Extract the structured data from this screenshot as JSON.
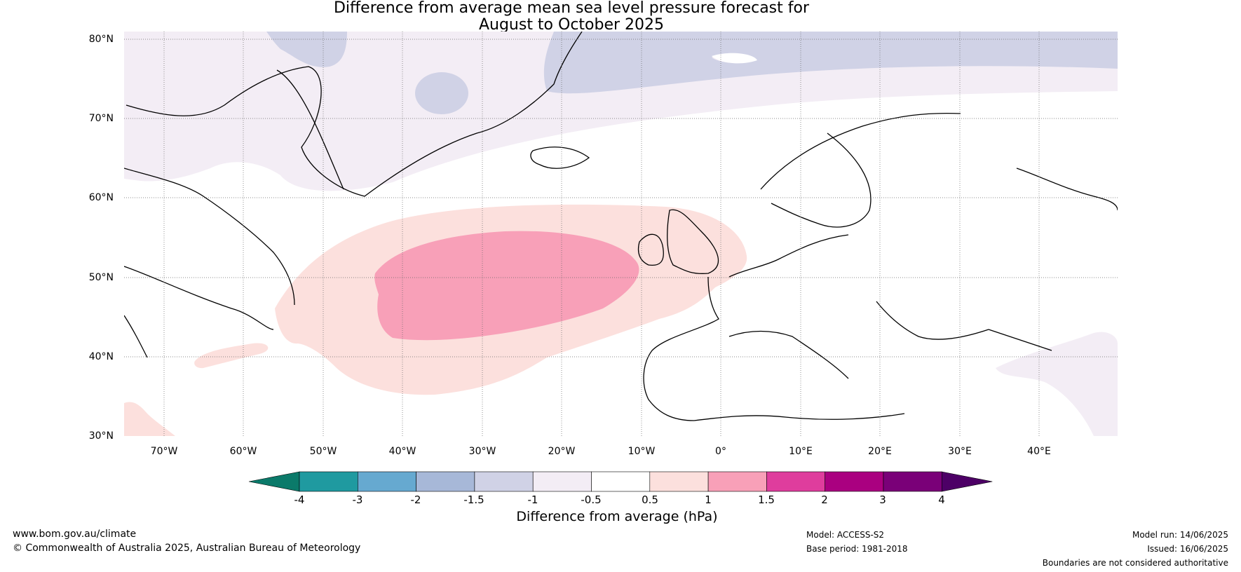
{
  "title": {
    "line1": "Difference from average mean sea level pressure forecast for",
    "line2": "August to October 2025"
  },
  "map": {
    "lat_labels": [
      "80°N",
      "70°N",
      "60°N",
      "50°N",
      "40°N",
      "30°N"
    ],
    "lon_labels": [
      "70°W",
      "60°W",
      "50°W",
      "40°W",
      "30°W",
      "20°W",
      "10°W",
      "0°",
      "10°E",
      "20°E",
      "30°E",
      "40°E"
    ]
  },
  "colorbar": {
    "title": "Difference from average (hPa)",
    "ticks": [
      "-4",
      "-3",
      "-2",
      "-1.5",
      "-1",
      "-0.5",
      "0.5",
      "1",
      "1.5",
      "2",
      "3",
      "4"
    ],
    "colors": {
      "below_-4": "#0b7a6a",
      "-4_-3": "#1f9aa0",
      "-3_-2": "#66a9d0",
      "-2_-1.5": "#a7b8d8",
      "-1.5_-1": "#d0d2e6",
      "-1_-0.5": "#f3edf5",
      "-0.5_0.5": "#ffffff",
      "0.5_1": "#fce0dd",
      "1_1.5": "#f8a0b8",
      "1.5_2": "#df3d9d",
      "2_3": "#aa0080",
      "3_4": "#7a0078",
      "above_4": "#4d0066"
    }
  },
  "footer": {
    "website": "www.bom.gov.au/climate",
    "copyright": "© Commonwealth of Australia 2025, Australian Bureau of Meteorology",
    "model": "Model: ACCESS-S2",
    "base_period": "Base period: 1981-2018",
    "model_run": "Model run: 14/06/2025",
    "issued": "Issued: 16/06/2025",
    "disclaimer": "Boundaries are not considered authoritative"
  }
}
